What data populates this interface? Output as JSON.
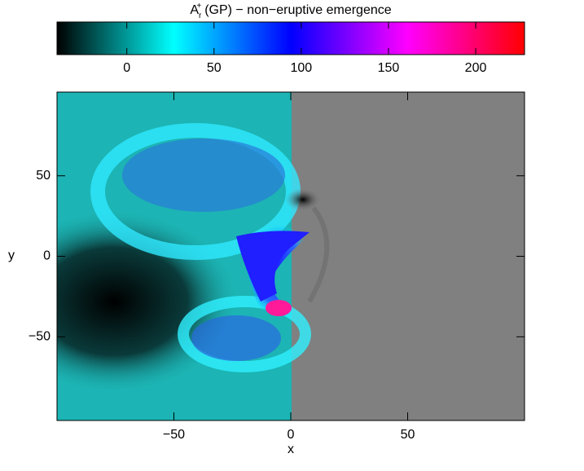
{
  "chart_data": {
    "type": "heatmap",
    "title": {
      "base": "A",
      "sub": "r",
      "sup": "+",
      "rest": "(GP) − non−eruptive emergence"
    },
    "xlabel": "x",
    "ylabel": "y",
    "xlim": [
      -100,
      100
    ],
    "xticks": [
      {
        "value": -50,
        "label": "−50"
      },
      0,
      50
    ],
    "ylim": [
      -102,
      102
    ],
    "yticks": [
      {
        "value": -50,
        "label": "−50"
      },
      0,
      50
    ],
    "colorbar": {
      "lim": [
        -40,
        228
      ],
      "ticks": [
        0,
        50,
        100,
        150,
        200
      ],
      "colors": [
        "#000000",
        "#00ffff",
        "#0000ff",
        "#ff00ff",
        "#ff0000"
      ]
    }
  }
}
